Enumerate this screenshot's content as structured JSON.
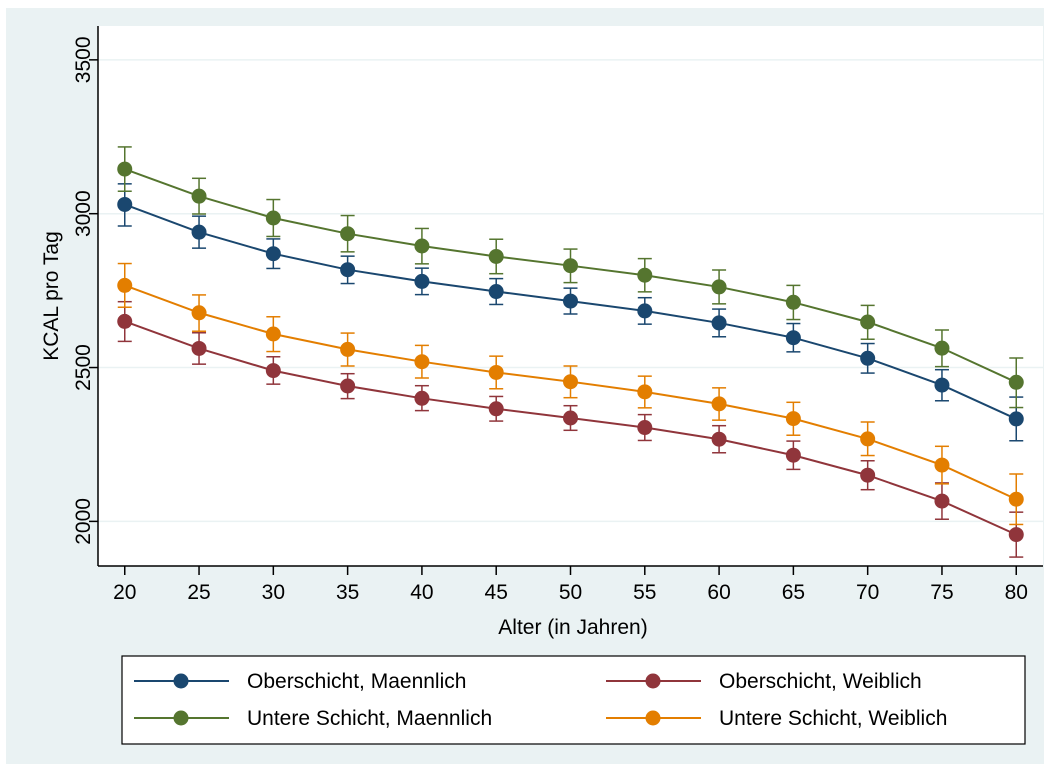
{
  "chart_data": {
    "type": "line",
    "xlabel": "Alter (in Jahren)",
    "ylabel": "KCAL pro Tag",
    "x": [
      20,
      25,
      30,
      35,
      40,
      45,
      50,
      55,
      60,
      65,
      70,
      75,
      80
    ],
    "xlim": [
      18.2,
      81.8
    ],
    "ylim": [
      1855,
      3610
    ],
    "yticks": [
      2000,
      2500,
      3000,
      3500
    ],
    "grid": "horizontal",
    "legend_position": "bottom",
    "error_bars": true,
    "series": [
      {
        "name": "Oberschicht, Maennlich",
        "color": "#1a476f",
        "values": [
          3030,
          2940,
          2870,
          2818,
          2780,
          2747,
          2716,
          2684,
          2645,
          2597,
          2530,
          2443,
          2333
        ],
        "lower": [
          2960,
          2888,
          2822,
          2773,
          2737,
          2705,
          2674,
          2641,
          2600,
          2551,
          2482,
          2392,
          2262
        ],
        "upper": [
          3097,
          2992,
          2918,
          2862,
          2823,
          2789,
          2758,
          2727,
          2690,
          2643,
          2578,
          2493,
          2404
        ]
      },
      {
        "name": "Oberschicht, Weiblich",
        "color": "#90353b",
        "values": [
          2650,
          2562,
          2490,
          2440,
          2400,
          2366,
          2336,
          2305,
          2267,
          2215,
          2150,
          2066,
          1957
        ],
        "lower": [
          2585,
          2511,
          2446,
          2399,
          2360,
          2326,
          2296,
          2263,
          2223,
          2169,
          2103,
          2007,
          1884
        ],
        "upper": [
          2714,
          2613,
          2535,
          2480,
          2441,
          2406,
          2376,
          2347,
          2311,
          2261,
          2197,
          2125,
          2030
        ]
      },
      {
        "name": "Untere Schicht, Maennlich",
        "color": "#55752f",
        "values": [
          3145,
          3057,
          2986,
          2935,
          2895,
          2861,
          2831,
          2800,
          2762,
          2712,
          2648,
          2563,
          2452
        ],
        "lower": [
          3073,
          2999,
          2926,
          2876,
          2837,
          2805,
          2776,
          2746,
          2707,
          2656,
          2592,
          2503,
          2370
        ],
        "upper": [
          3217,
          3115,
          3046,
          2994,
          2952,
          2917,
          2885,
          2854,
          2817,
          2767,
          2702,
          2622,
          2531
        ]
      },
      {
        "name": "Untere Schicht, Weiblich",
        "color": "#e37e00",
        "values": [
          2767,
          2678,
          2609,
          2559,
          2519,
          2484,
          2454,
          2421,
          2382,
          2334,
          2268,
          2183,
          2072
        ],
        "lower": [
          2696,
          2618,
          2552,
          2505,
          2466,
          2431,
          2402,
          2369,
          2329,
          2280,
          2214,
          2122,
          1990
        ],
        "upper": [
          2838,
          2736,
          2665,
          2612,
          2572,
          2537,
          2505,
          2472,
          2434,
          2387,
          2323,
          2244,
          2154
        ]
      }
    ]
  }
}
